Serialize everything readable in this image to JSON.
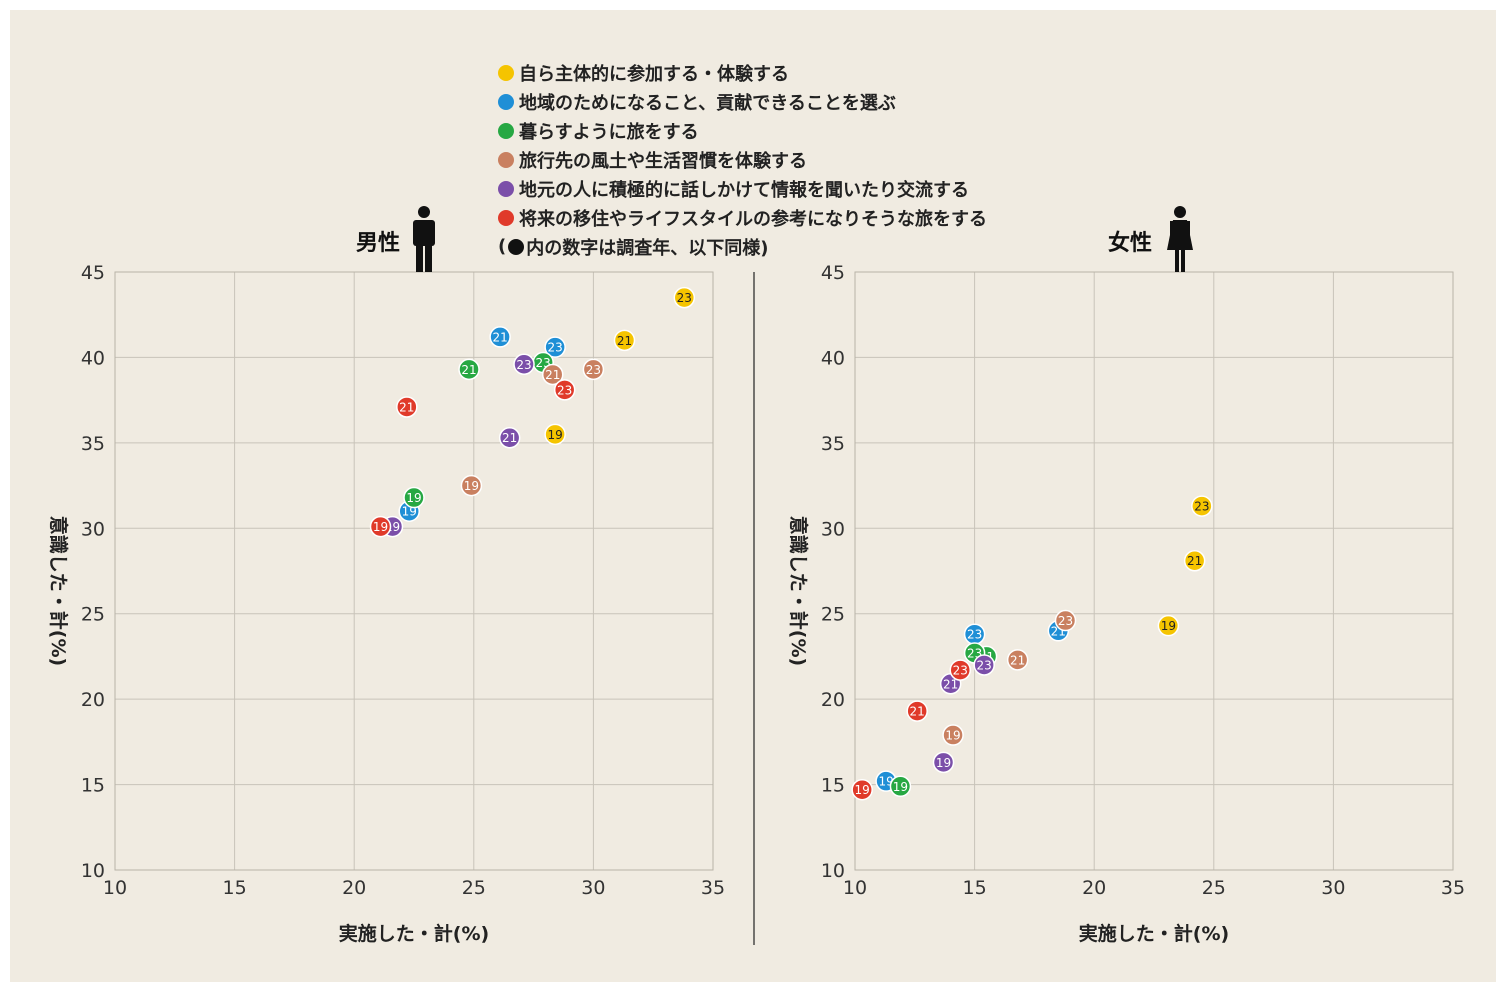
{
  "legend": {
    "items": [
      {
        "label": "自ら主体的に参加する・体験する",
        "color": "#f5c400"
      },
      {
        "label": "地域のためになること、貢献できることを選ぶ",
        "color": "#1f8fd6"
      },
      {
        "label": "暮らすように旅をする",
        "color": "#27a843"
      },
      {
        "label": "旅行先の風土や生活習慣を体験する",
        "color": "#c98060"
      },
      {
        "label": "地元の人に積極的に話しかけて情報を聞いたり交流する",
        "color": "#7b4fa9"
      },
      {
        "label": "将来の移住やライフスタイルの参考になりそうな旅をする",
        "color": "#e03a2a"
      }
    ],
    "note_open": "(",
    "note": "内の数字は調査年、以下同様)"
  },
  "chart_data": [
    {
      "type": "scatter",
      "title": "男性",
      "xlabel": "実施した・計(%)",
      "ylabel": "意識した・計(%)",
      "xlim": [
        10,
        35
      ],
      "ylim": [
        10,
        45
      ],
      "xticks": [
        "10",
        "15",
        "20",
        "25",
        "30",
        "35"
      ],
      "yticks": [
        "10",
        "15",
        "20",
        "25",
        "30",
        "35",
        "40",
        "45"
      ],
      "series": [
        {
          "name": "自ら主体的に参加する・体験する",
          "points": [
            {
              "x": 28.4,
              "y": 35.5,
              "label": "19"
            },
            {
              "x": 31.3,
              "y": 41.0,
              "label": "21"
            },
            {
              "x": 33.8,
              "y": 43.5,
              "label": "23"
            }
          ]
        },
        {
          "name": "地域のためになること、貢献できることを選ぶ",
          "points": [
            {
              "x": 22.3,
              "y": 31.0,
              "label": "19"
            },
            {
              "x": 26.1,
              "y": 41.2,
              "label": "21"
            },
            {
              "x": 28.4,
              "y": 40.6,
              "label": "23"
            }
          ]
        },
        {
          "name": "暮らすように旅をする",
          "points": [
            {
              "x": 22.5,
              "y": 31.8,
              "label": "19"
            },
            {
              "x": 24.8,
              "y": 39.3,
              "label": "21"
            },
            {
              "x": 27.9,
              "y": 39.7,
              "label": "23"
            }
          ]
        },
        {
          "name": "旅行先の風土や生活習慣を体験する",
          "points": [
            {
              "x": 24.9,
              "y": 32.5,
              "label": "19"
            },
            {
              "x": 28.3,
              "y": 39.0,
              "label": "21"
            },
            {
              "x": 30.0,
              "y": 39.3,
              "label": "23"
            }
          ]
        },
        {
          "name": "地元の人に積極的に話しかけて情報を聞いたり交流する",
          "points": [
            {
              "x": 21.6,
              "y": 30.1,
              "label": "19"
            },
            {
              "x": 26.5,
              "y": 35.3,
              "label": "21"
            },
            {
              "x": 27.1,
              "y": 39.6,
              "label": "23"
            }
          ]
        },
        {
          "name": "将来の移住やライフスタイルの参考になりそうな旅をする",
          "points": [
            {
              "x": 21.1,
              "y": 30.1,
              "label": "19"
            },
            {
              "x": 22.2,
              "y": 37.1,
              "label": "21"
            },
            {
              "x": 28.8,
              "y": 38.1,
              "label": "23"
            }
          ]
        }
      ]
    },
    {
      "type": "scatter",
      "title": "女性",
      "xlabel": "実施した・計(%)",
      "ylabel": "意識した・計(%)",
      "xlim": [
        10,
        35
      ],
      "ylim": [
        10,
        45
      ],
      "xticks": [
        "10",
        "15",
        "20",
        "25",
        "30",
        "35"
      ],
      "yticks": [
        "10",
        "15",
        "20",
        "25",
        "30",
        "35",
        "40",
        "45"
      ],
      "series": [
        {
          "name": "自ら主体的に参加する・体験する",
          "points": [
            {
              "x": 23.1,
              "y": 24.3,
              "label": "19"
            },
            {
              "x": 24.2,
              "y": 28.1,
              "label": "21"
            },
            {
              "x": 24.5,
              "y": 31.3,
              "label": "23"
            }
          ]
        },
        {
          "name": "地域のためになること、貢献できることを選ぶ",
          "points": [
            {
              "x": 11.3,
              "y": 15.2,
              "label": "19"
            },
            {
              "x": 18.5,
              "y": 24.0,
              "label": "21"
            },
            {
              "x": 15.0,
              "y": 23.8,
              "label": "23"
            }
          ]
        },
        {
          "name": "暮らすように旅をする",
          "points": [
            {
              "x": 11.9,
              "y": 14.9,
              "label": "19"
            },
            {
              "x": 15.5,
              "y": 22.5,
              "label": "21"
            },
            {
              "x": 15.0,
              "y": 22.7,
              "label": "23"
            }
          ]
        },
        {
          "name": "旅行先の風土や生活習慣を体験する",
          "points": [
            {
              "x": 14.1,
              "y": 17.9,
              "label": "19"
            },
            {
              "x": 16.8,
              "y": 22.3,
              "label": "21"
            },
            {
              "x": 18.8,
              "y": 24.6,
              "label": "23"
            }
          ]
        },
        {
          "name": "地元の人に積極的に話しかけて情報を聞いたり交流する",
          "points": [
            {
              "x": 13.7,
              "y": 16.3,
              "label": "19"
            },
            {
              "x": 14.0,
              "y": 20.9,
              "label": "21"
            },
            {
              "x": 15.4,
              "y": 22.0,
              "label": "23"
            }
          ]
        },
        {
          "name": "将来の移住やライフスタイルの参考になりそうな旅をする",
          "points": [
            {
              "x": 10.3,
              "y": 14.7,
              "label": "19"
            },
            {
              "x": 12.6,
              "y": 19.3,
              "label": "21"
            },
            {
              "x": 14.4,
              "y": 21.7,
              "label": "23"
            }
          ]
        }
      ]
    }
  ]
}
